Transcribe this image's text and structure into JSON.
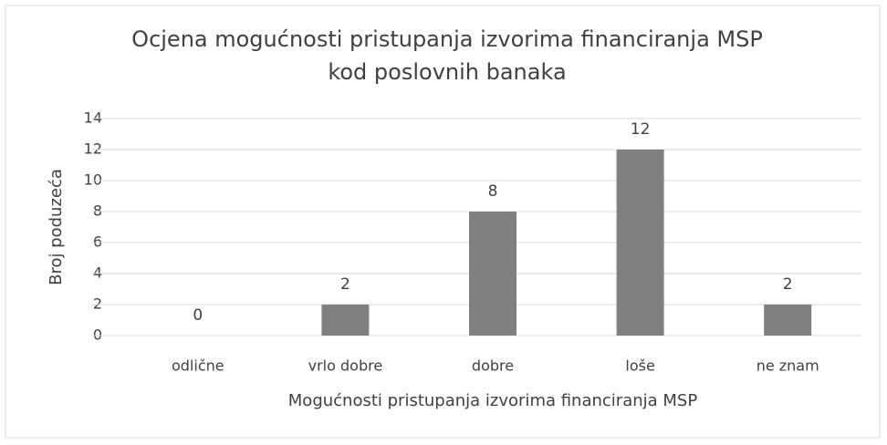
{
  "chart_data": {
    "type": "bar",
    "title": [
      "Ocjena mogućnosti pristupanja izvorima financiranja MSP",
      "kod poslovnih banaka"
    ],
    "x_label": "Mogućnosti pristupanja izvorima financiranja MSP",
    "y_label": "Broj poduzeća",
    "categories": [
      "odlične",
      "vrlo dobre",
      "dobre",
      "loše",
      "ne znam"
    ],
    "values": [
      0,
      2,
      8,
      12,
      2
    ],
    "color": "#808080",
    "ylim": [
      0,
      14
    ],
    "yticks": [
      0,
      2,
      4,
      6,
      8,
      10,
      12,
      14
    ],
    "grid": true
  }
}
